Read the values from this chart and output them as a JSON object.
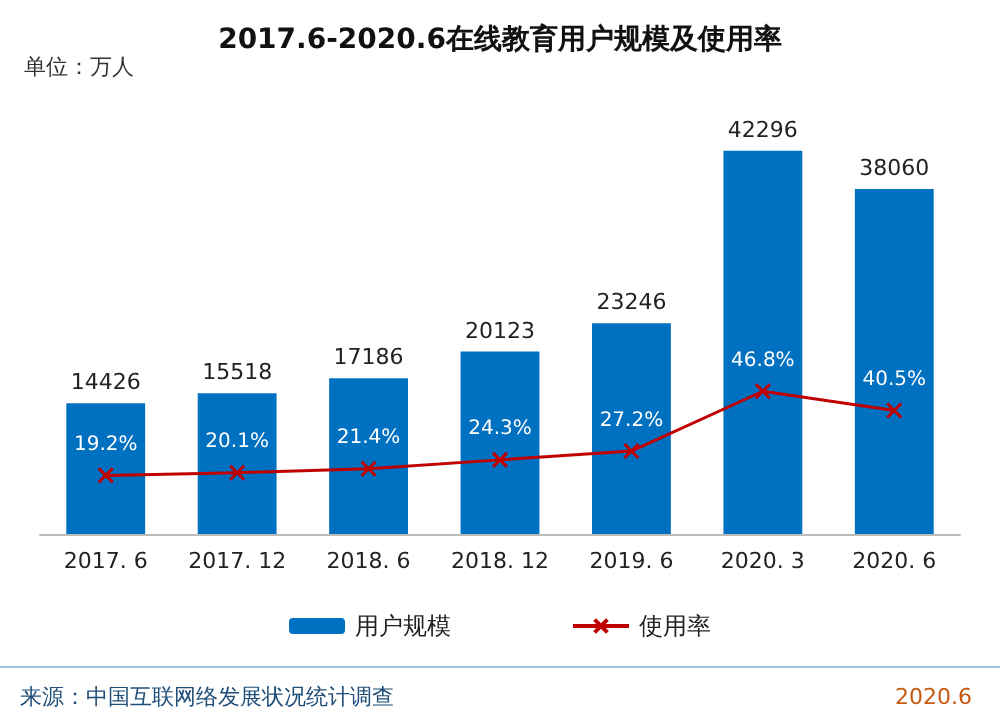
{
  "chart_data": {
    "type": "bar",
    "title": "2017.6-2020.6在线教育用户规模及使用率",
    "categories": [
      "2017. 6",
      "2017. 12",
      "2018. 6",
      "2018. 12",
      "2019. 6",
      "2020. 3",
      "2020. 6"
    ],
    "series": [
      {
        "name": "用户规模",
        "color": "#0070c0",
        "values": [
          14426,
          15518,
          17186,
          20123,
          23246,
          42296,
          38060
        ]
      },
      {
        "name": "使用率",
        "type": "line",
        "axis": "y2",
        "color": "#c00000",
        "marker": "cross",
        "values": [
          19.2,
          20.1,
          21.4,
          24.3,
          27.2,
          46.8,
          40.5
        ],
        "value_labels": [
          "19.2%",
          "20.1%",
          "21.4%",
          "24.3%",
          "27.2%",
          "46.8%",
          "40.5%"
        ]
      }
    ],
    "data_labels": true,
    "legend": "bottom",
    "annotations": [
      "单位：万人",
      "来源：中国互联网络发展状况统计调查",
      "2020.6"
    ]
  }
}
